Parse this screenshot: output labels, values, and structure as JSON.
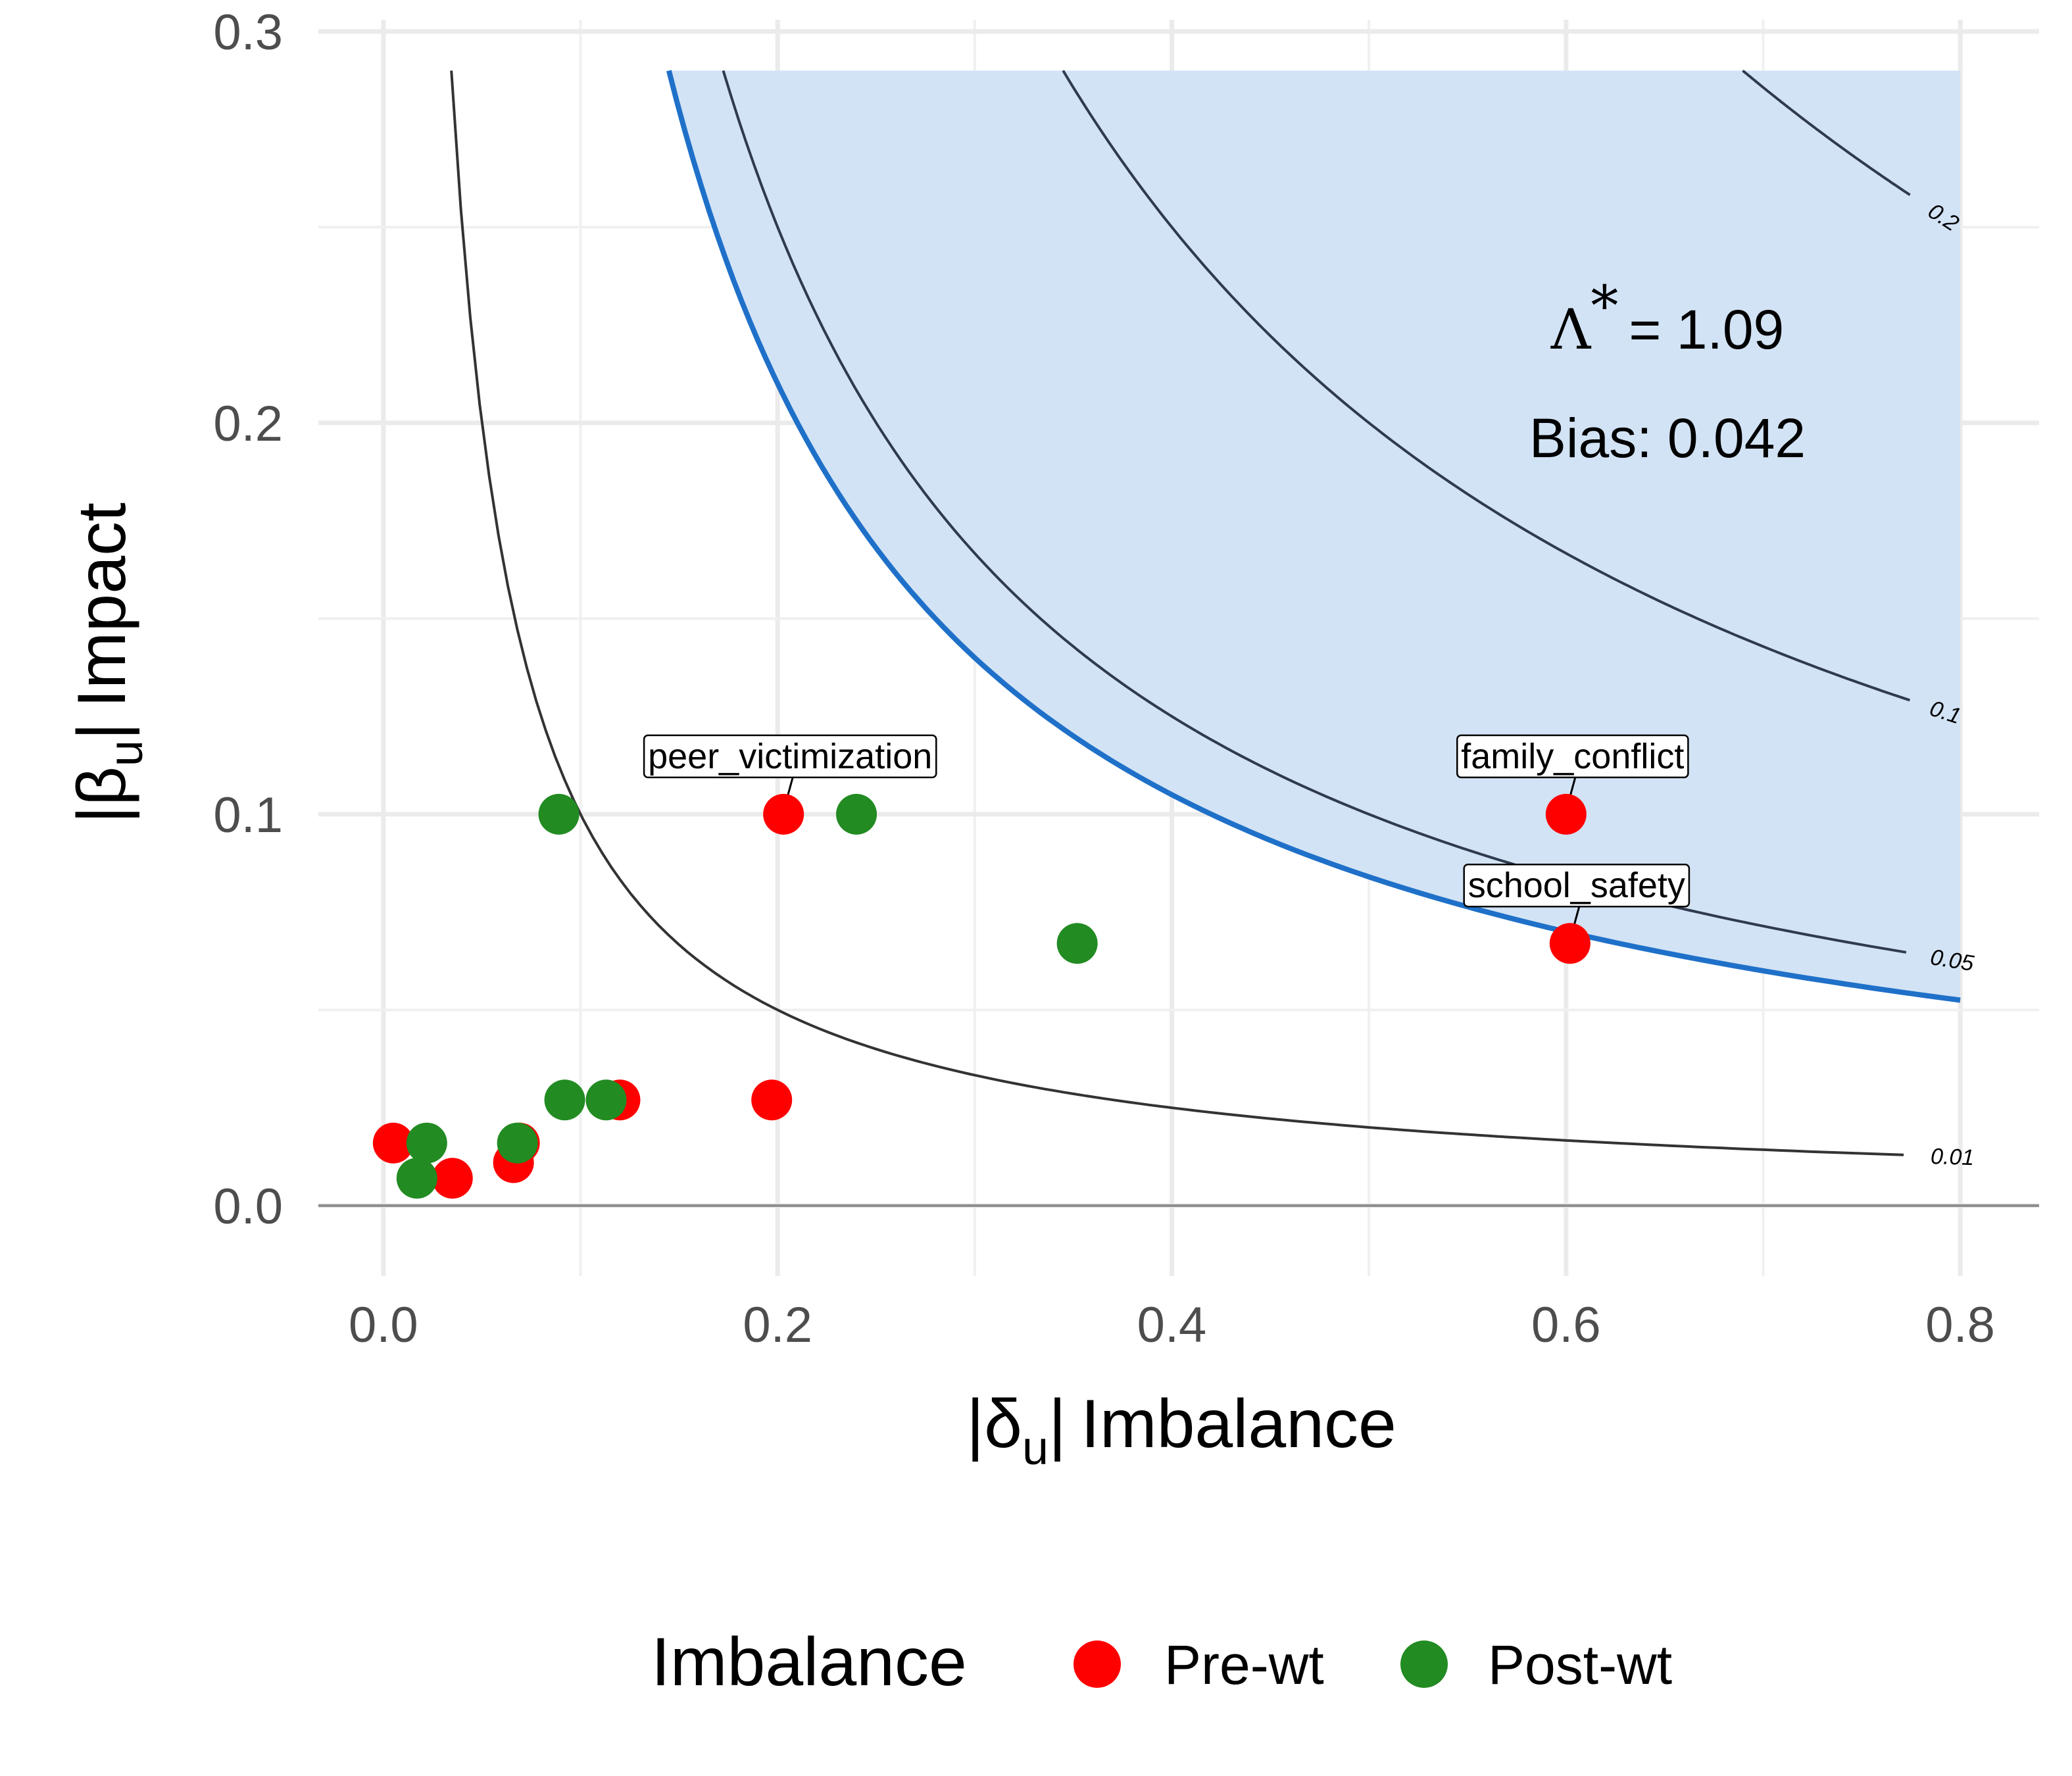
{
  "chart_data": {
    "type": "scatter",
    "title": "",
    "xlabel": {
      "symbol": "δ",
      "sub": "u",
      "text": "Imbalance"
    },
    "ylabel": {
      "symbol": "β",
      "sub": "u",
      "text": "Impact"
    },
    "xlim": [
      -0.033,
      0.84
    ],
    "ylim": [
      -0.018,
      0.303
    ],
    "x_ticks": [
      {
        "value": 0.0,
        "label": "0.0"
      },
      {
        "value": 0.2,
        "label": "0.2"
      },
      {
        "value": 0.4,
        "label": "0.4"
      },
      {
        "value": 0.6,
        "label": "0.6"
      },
      {
        "value": 0.8,
        "label": "0.8"
      }
    ],
    "y_ticks": [
      {
        "value": 0.0,
        "label": "0.0"
      },
      {
        "value": 0.1,
        "label": "0.1"
      },
      {
        "value": 0.2,
        "label": "0.2"
      },
      {
        "value": 0.3,
        "label": "0.3"
      }
    ],
    "grid": true,
    "contours": [
      {
        "level": 0.01,
        "label": "0.01",
        "color": "#333333"
      },
      {
        "level": 0.05,
        "label": "0.05",
        "color": "#2f3a4f"
      },
      {
        "level": 0.1,
        "label": "0.1",
        "color": "#2f3a4f"
      },
      {
        "level": 0.2,
        "label": "0.2",
        "color": "#2f3a4f"
      }
    ],
    "threshold": {
      "level": 0.042,
      "color": "#1f70c8",
      "fill": "#d2e3f5",
      "x_max": 0.8,
      "y_max": 0.29
    },
    "annotations": {
      "lambda_symbol": "Λ",
      "lambda_sup": "*",
      "lambda_value": "= 1.09",
      "bias": "Bias: 0.042"
    },
    "legend": {
      "title": "Imbalance",
      "position": "bottom"
    },
    "series": [
      {
        "name": "Pre-wt",
        "color": "#ff0000",
        "points": [
          {
            "x": 0.005,
            "y": 0.016
          },
          {
            "x": 0.035,
            "y": 0.007
          },
          {
            "x": 0.066,
            "y": 0.011
          },
          {
            "x": 0.069,
            "y": 0.016
          },
          {
            "x": 0.12,
            "y": 0.027
          },
          {
            "x": 0.197,
            "y": 0.027
          },
          {
            "x": 0.203,
            "y": 0.1,
            "label": "peer_victimization"
          },
          {
            "x": 0.6,
            "y": 0.1,
            "label": "family_conflict"
          },
          {
            "x": 0.602,
            "y": 0.067,
            "label": "school_safety"
          }
        ]
      },
      {
        "name": "Post-wt",
        "color": "#228b22",
        "points": [
          {
            "x": 0.017,
            "y": 0.007
          },
          {
            "x": 0.022,
            "y": 0.016
          },
          {
            "x": 0.068,
            "y": 0.016
          },
          {
            "x": 0.089,
            "y": 0.1
          },
          {
            "x": 0.092,
            "y": 0.027
          },
          {
            "x": 0.113,
            "y": 0.027
          },
          {
            "x": 0.24,
            "y": 0.1
          },
          {
            "x": 0.352,
            "y": 0.067
          }
        ]
      }
    ]
  }
}
